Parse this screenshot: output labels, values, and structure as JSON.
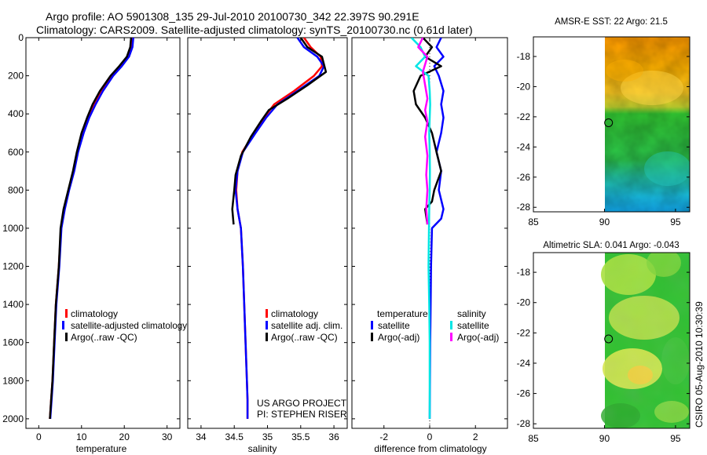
{
  "header": {
    "title_line1": "Argo profile: AO 5901308_135 29-Jul-2010 20100730_342 22.397S 90.291E",
    "title_line2": "Climatology: CARS2009. Satellite-adjusted climatology: synTS_20100730.nc (0.61d later)"
  },
  "colors": {
    "climatology": "#ff0000",
    "satellite": "#0000ff",
    "argo": "#000000",
    "sat_salinity": "#00e5e5",
    "argo_salinity": "#ff00ff"
  },
  "chart_data": [
    {
      "type": "line",
      "name": "temperature-profile",
      "xlabel": "temperature",
      "ylabel": "",
      "xlim": [
        -3,
        33
      ],
      "ylim": [
        0,
        2050
      ],
      "yreversed": true,
      "xticks": [
        0,
        10,
        20,
        30
      ],
      "yticks": [
        0,
        200,
        400,
        600,
        800,
        1000,
        1200,
        1400,
        1600,
        1800,
        2000
      ],
      "series": [
        {
          "name": "climatology",
          "color": "#ff0000",
          "x": [
            21.7,
            21.5,
            20.8,
            19.0,
            17.0,
            14.5,
            12.8,
            11.5,
            10.2,
            9.0,
            8.2,
            7.0,
            6.0,
            5.2,
            4.7,
            4.0,
            3.6,
            3.2,
            2.9,
            2.6
          ],
          "y": [
            0,
            50,
            100,
            150,
            200,
            280,
            350,
            420,
            500,
            600,
            700,
            800,
            900,
            1000,
            1200,
            1400,
            1600,
            1800,
            1900,
            2000
          ]
        },
        {
          "name": "satellite-adjusted climatology",
          "color": "#0000ff",
          "x": [
            22.1,
            21.9,
            21.1,
            19.4,
            17.4,
            15.0,
            13.3,
            11.8,
            10.5,
            9.2,
            8.3,
            7.1,
            6.1,
            5.3,
            4.8,
            4.1,
            3.7,
            3.3,
            3.0,
            2.7
          ],
          "y": [
            0,
            50,
            100,
            150,
            200,
            280,
            350,
            420,
            500,
            600,
            700,
            800,
            900,
            1000,
            1200,
            1400,
            1600,
            1800,
            1900,
            2000
          ]
        },
        {
          "name": "Argo(..raw -QC)",
          "color": "#000000",
          "x": [
            21.6,
            21.4,
            20.6,
            18.8,
            16.8,
            14.3,
            12.6,
            11.3,
            10.0,
            8.9,
            8.0,
            6.9,
            5.8,
            5.1,
            4.7,
            4.0,
            3.6,
            3.2,
            2.9,
            2.6
          ],
          "y": [
            0,
            50,
            100,
            150,
            200,
            280,
            350,
            420,
            500,
            600,
            700,
            800,
            900,
            1000,
            1200,
            1400,
            1600,
            1800,
            1900,
            2000
          ]
        }
      ],
      "legend": {
        "position": "lower-right",
        "entries": [
          "climatology",
          "satellite-adjusted climatology",
          "Argo(..raw -QC)"
        ]
      }
    },
    {
      "type": "line",
      "name": "salinity-profile",
      "xlabel": "salinity",
      "xlim": [
        33.8,
        36.2
      ],
      "ylim": [
        0,
        2050
      ],
      "yreversed": true,
      "xticks": [
        34,
        34.5,
        35,
        35.5,
        36
      ],
      "xticklabels": [
        "34",
        "34.5",
        "35",
        "35.5",
        "36"
      ],
      "series": [
        {
          "name": "climatology",
          "color": "#ff0000",
          "x": [
            35.55,
            35.65,
            35.8,
            35.82,
            35.7,
            35.4,
            35.1,
            34.95,
            34.8,
            34.62,
            34.55,
            34.53,
            34.55,
            34.6,
            34.63,
            34.65,
            34.67,
            34.69,
            34.7,
            34.7
          ],
          "y": [
            0,
            50,
            100,
            150,
            200,
            280,
            350,
            420,
            500,
            600,
            700,
            800,
            900,
            1000,
            1200,
            1400,
            1600,
            1800,
            1900,
            2000
          ]
        },
        {
          "name": "satellite adj. clim.",
          "color": "#0000ff",
          "x": [
            35.45,
            35.55,
            35.75,
            35.85,
            35.78,
            35.45,
            35.15,
            34.98,
            34.82,
            34.63,
            34.55,
            34.52,
            34.55,
            34.6,
            34.63,
            34.65,
            34.67,
            34.69,
            34.7,
            34.7
          ],
          "y": [
            0,
            50,
            100,
            150,
            200,
            280,
            350,
            420,
            500,
            600,
            700,
            800,
            900,
            1000,
            1200,
            1400,
            1600,
            1800,
            1900,
            2000
          ]
        },
        {
          "name": "Argo(..raw -QC)",
          "color": "#000000",
          "x": [
            35.5,
            35.6,
            35.82,
            35.88,
            35.6,
            35.3,
            35.02,
            34.9,
            34.75,
            34.6,
            34.52,
            34.5,
            34.47,
            34.49
          ],
          "y": [
            0,
            50,
            100,
            180,
            250,
            320,
            380,
            440,
            520,
            620,
            720,
            800,
            900,
            980
          ]
        }
      ],
      "legend": {
        "position": "lower-right",
        "entries": [
          "climatology",
          "satellite adj. clim.",
          "Argo(..raw -QC)"
        ]
      },
      "annotation_line1": "US ARGO PROJECT",
      "annotation_line2": "PI: STEPHEN RISER"
    },
    {
      "type": "line",
      "name": "difference-from-climatology",
      "xlabel": "difference from climatology",
      "xlim": [
        -3.4,
        3.4
      ],
      "ylim": [
        0,
        2050
      ],
      "yreversed": true,
      "xticks": [
        -2,
        0,
        2
      ],
      "series": [
        {
          "name": "temperature satellite",
          "color": "#0000ff",
          "x": [
            0.5,
            0.3,
            0.6,
            0.2,
            0.4,
            0.6,
            0.5,
            0.6,
            0.5,
            0.3,
            0.5,
            0.4,
            0.6,
            0.5,
            0.1,
            0.06,
            0.04,
            0.02,
            0.01,
            0
          ],
          "y": [
            0,
            50,
            100,
            150,
            200,
            280,
            350,
            420,
            500,
            600,
            700,
            800,
            900,
            950,
            1000,
            1200,
            1400,
            1600,
            1800,
            2000
          ]
        },
        {
          "name": "temperature Argo(-adj)",
          "color": "#000000",
          "x": [
            -0.3,
            0.1,
            -0.2,
            0.5,
            -0.4,
            -0.7,
            -0.6,
            -0.2,
            0.1,
            0.3,
            0.5,
            0.2,
            0.1,
            -0.2,
            -0.1
          ],
          "y": [
            0,
            50,
            100,
            150,
            200,
            280,
            350,
            420,
            500,
            600,
            700,
            800,
            860,
            900,
            980
          ]
        },
        {
          "name": "salinity satellite",
          "color": "#00e5e5",
          "x": [
            -0.8,
            -0.4,
            -0.2,
            -0.6,
            -0.05,
            0,
            0.02,
            0,
            -0.02,
            0,
            0.01,
            0,
            -0.02,
            -0.03,
            -0.05,
            -0.02,
            0,
            0,
            0
          ],
          "y": [
            0,
            50,
            100,
            150,
            200,
            280,
            350,
            420,
            500,
            600,
            700,
            800,
            900,
            1000,
            1200,
            1400,
            1600,
            1800,
            2000
          ]
        },
        {
          "name": "salinity Argo(-adj)",
          "color": "#ff00ff",
          "x": [
            -0.3,
            -0.5,
            -0.1,
            -0.3,
            -0.2,
            -0.1,
            -0.2,
            -0.1,
            -0.2,
            -0.1,
            -0.15,
            -0.1,
            -0.15,
            -0.1
          ],
          "y": [
            0,
            50,
            100,
            180,
            250,
            320,
            380,
            440,
            520,
            620,
            720,
            800,
            900,
            980
          ]
        }
      ],
      "legend": {
        "position": "lower-right",
        "group_temperature": "temperature",
        "group_salinity": "salinity",
        "entries": [
          "satellite",
          "Argo(-adj)",
          "satellite",
          "Argo(-adj)"
        ]
      }
    },
    {
      "type": "heatmap",
      "name": "amsre-sst-map",
      "title": "AMSR-E SST: 22 Argo: 21.5",
      "xlim": [
        85,
        96
      ],
      "ylim": [
        -28.3,
        -16.7
      ],
      "xticks": [
        85,
        90,
        95
      ],
      "yticks": [
        -18,
        -20,
        -22,
        -24,
        -26,
        -28
      ],
      "data_lon_range": [
        90,
        96
      ],
      "float_position": [
        90.291,
        -22.397
      ],
      "colormap": "jet"
    },
    {
      "type": "heatmap",
      "name": "altimetric-sla-map",
      "title": "Altimetric SLA: 0.041 Argo: -0.043",
      "xlim": [
        85,
        96
      ],
      "ylim": [
        -28.3,
        -16.7
      ],
      "xticks": [
        85,
        90,
        95
      ],
      "yticks": [
        -18,
        -20,
        -22,
        -24,
        -26,
        -28
      ],
      "data_lon_range": [
        90,
        96
      ],
      "float_position": [
        90.291,
        -22.397
      ],
      "colormap": "jet"
    }
  ],
  "footer": {
    "credit": "CSIRO 05-Aug-2010 10:30:39"
  }
}
